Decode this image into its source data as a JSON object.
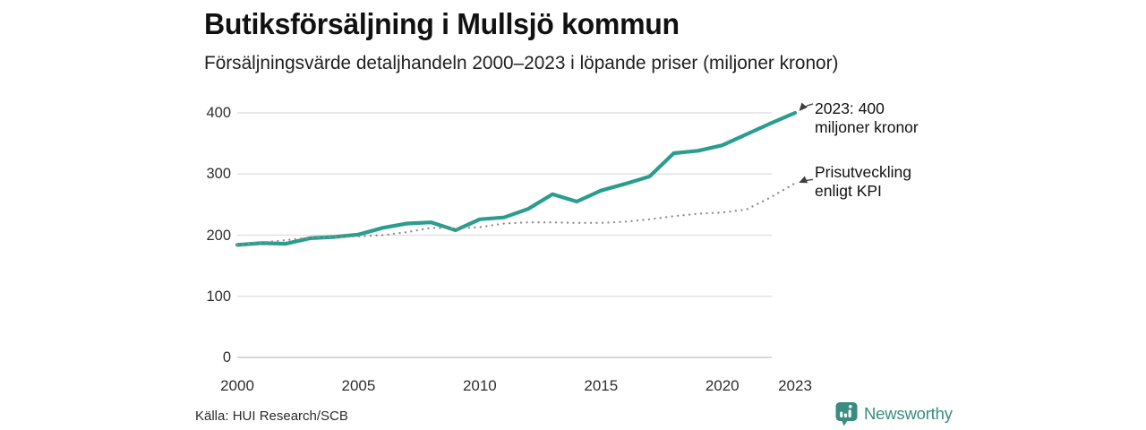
{
  "header": {
    "title": "Butiksförsäljning i Mullsjö kommun",
    "subtitle": "Försäljningsvärde detaljhandeln 2000–2023 i löpande priser (miljoner kronor)"
  },
  "chart_data": {
    "type": "line",
    "title": "Butiksförsäljning i Mullsjö kommun",
    "subtitle": "Försäljningsvärde detaljhandeln 2000–2023 i löpande priser (miljoner kronor)",
    "xlabel": "",
    "ylabel": "miljoner kronor",
    "xlim": [
      2000,
      2023
    ],
    "ylim": [
      0,
      400
    ],
    "xticks": [
      2000,
      2005,
      2010,
      2015,
      2020,
      2023
    ],
    "yticks": [
      0,
      100,
      200,
      300,
      400
    ],
    "grid": "horizontal",
    "legend_position": "direct-labels",
    "x": [
      2000,
      2001,
      2002,
      2003,
      2004,
      2005,
      2006,
      2007,
      2008,
      2009,
      2010,
      2011,
      2012,
      2013,
      2014,
      2015,
      2016,
      2017,
      2018,
      2019,
      2020,
      2021,
      2022,
      2023
    ],
    "series": [
      {
        "name": "Försäljningsvärde i löpande priser",
        "style": "solid",
        "color": "#2a9d8f",
        "values": [
          184,
          187,
          186,
          195,
          197,
          201,
          212,
          219,
          221,
          208,
          226,
          229,
          243,
          267,
          255,
          273,
          284,
          296,
          334,
          338,
          347,
          365,
          383,
          400
        ]
      },
      {
        "name": "Prisutveckling enligt KPI",
        "style": "dotted",
        "color": "#8f8f8f",
        "values": [
          184,
          188,
          192,
          196,
          197,
          198,
          200,
          205,
          212,
          211,
          213,
          219,
          221,
          221,
          220,
          220,
          222,
          226,
          231,
          235,
          237,
          242,
          262,
          285
        ]
      }
    ],
    "annotations": [
      {
        "lines": [
          "2023: 400",
          "miljoner kronor"
        ]
      },
      {
        "lines": [
          "Prisutveckling",
          "enligt KPI"
        ]
      }
    ]
  },
  "footer": {
    "source": "Källa: HUI Research/SCB",
    "brand": "Newsworthy"
  },
  "colors": {
    "accent_teal": "#2a9d8f",
    "brand_teal": "#3a8c80",
    "kpi_gray": "#8f8f8f",
    "gridline": "#e2e2e2",
    "axis_line": "#cccccc",
    "text": "#111111"
  }
}
